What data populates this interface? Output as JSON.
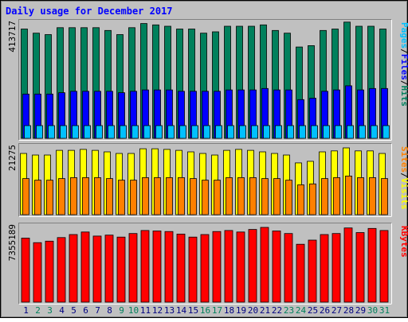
{
  "chart_data": {
    "type": "bar",
    "title": "Daily usage for December 2017",
    "categories": [
      "1",
      "2",
      "3",
      "4",
      "5",
      "6",
      "7",
      "8",
      "9",
      "10",
      "11",
      "12",
      "13",
      "14",
      "15",
      "16",
      "17",
      "18",
      "19",
      "20",
      "21",
      "22",
      "23",
      "24",
      "25",
      "26",
      "27",
      "28",
      "29",
      "30",
      "31"
    ],
    "weekend_days": [
      "2",
      "3",
      "9",
      "10",
      "16",
      "17",
      "23",
      "24",
      "30",
      "31"
    ],
    "panels": [
      {
        "id": "hits-files-pages",
        "max_label": "413717",
        "ymax": 413717,
        "series": [
          {
            "name": "Hits",
            "color": "#00805c",
            "values": [
              395000,
              380000,
              375000,
              400000,
              400000,
              400000,
              400000,
              390000,
              375000,
              400000,
              415000,
              410000,
              405000,
              395000,
              395000,
              380000,
              385000,
              405000,
              405000,
              405000,
              410000,
              390000,
              380000,
              330000,
              335000,
              390000,
              395000,
              420000,
              405000,
              405000,
              395000
            ]
          },
          {
            "name": "Files",
            "color": "#0000ff",
            "values": [
              160000,
              160000,
              160000,
              165000,
              170000,
              170000,
              170000,
              170000,
              165000,
              170000,
              175000,
              175000,
              175000,
              170000,
              170000,
              170000,
              170000,
              175000,
              175000,
              175000,
              180000,
              175000,
              175000,
              140000,
              145000,
              170000,
              175000,
              190000,
              175000,
              180000,
              180000
            ]
          },
          {
            "name": "Pages",
            "color": "#00c0ff",
            "values": [
              46000,
              46000,
              46000,
              46000,
              46000,
              46000,
              46000,
              46000,
              46000,
              46000,
              46000,
              46000,
              46000,
              46000,
              46000,
              46000,
              46000,
              46000,
              46000,
              46000,
              46000,
              46000,
              46000,
              46000,
              46000,
              46000,
              46000,
              46000,
              46000,
              46000,
              46000
            ]
          }
        ]
      },
      {
        "id": "visits-sites",
        "max_label": "21275",
        "ymax": 21275,
        "series": [
          {
            "name": "Visits",
            "color": "#ffff00",
            "values": [
              19500,
              19000,
              19000,
              20500,
              20500,
              20800,
              20500,
              20000,
              19500,
              19500,
              21000,
              21000,
              20800,
              20500,
              20000,
              19500,
              19000,
              20500,
              20800,
              20500,
              20000,
              19500,
              19000,
              16500,
              17000,
              20000,
              20300,
              21275,
              20300,
              20300,
              19500
            ]
          },
          {
            "name": "Sites",
            "color": "#ff8000",
            "values": [
              11500,
              11000,
              11000,
              11500,
              11800,
              11800,
              11800,
              11500,
              11000,
              11000,
              11800,
              11800,
              11800,
              11800,
              11500,
              11000,
              11000,
              11800,
              11800,
              11800,
              11500,
              11500,
              11000,
              9500,
              9800,
              11500,
              11800,
              12300,
              11800,
              11800,
              11500
            ]
          }
        ]
      },
      {
        "id": "kbytes",
        "max_label": "7355189",
        "ymax": 7355189,
        "series": [
          {
            "name": "KBytes",
            "color": "#ff0000",
            "values": [
              6300000,
              5850000,
              6000000,
              6350000,
              6650000,
              6900000,
              6500000,
              6600000,
              6400000,
              6750000,
              7050000,
              7000000,
              6950000,
              6700000,
              6400000,
              6650000,
              6950000,
              7050000,
              6900000,
              7150000,
              7355189,
              7000000,
              6750000,
              5700000,
              6100000,
              6650000,
              6750000,
              7300000,
              6850000,
              7250000,
              7050000
            ]
          }
        ]
      }
    ]
  },
  "legend_sep": "/",
  "colors": {
    "frame_bg": "#c0c0c0",
    "panel_bg": "#c0c0c0",
    "title": "#0000ff",
    "weekday_label": "#000080",
    "weekend_label": "#00805c"
  }
}
